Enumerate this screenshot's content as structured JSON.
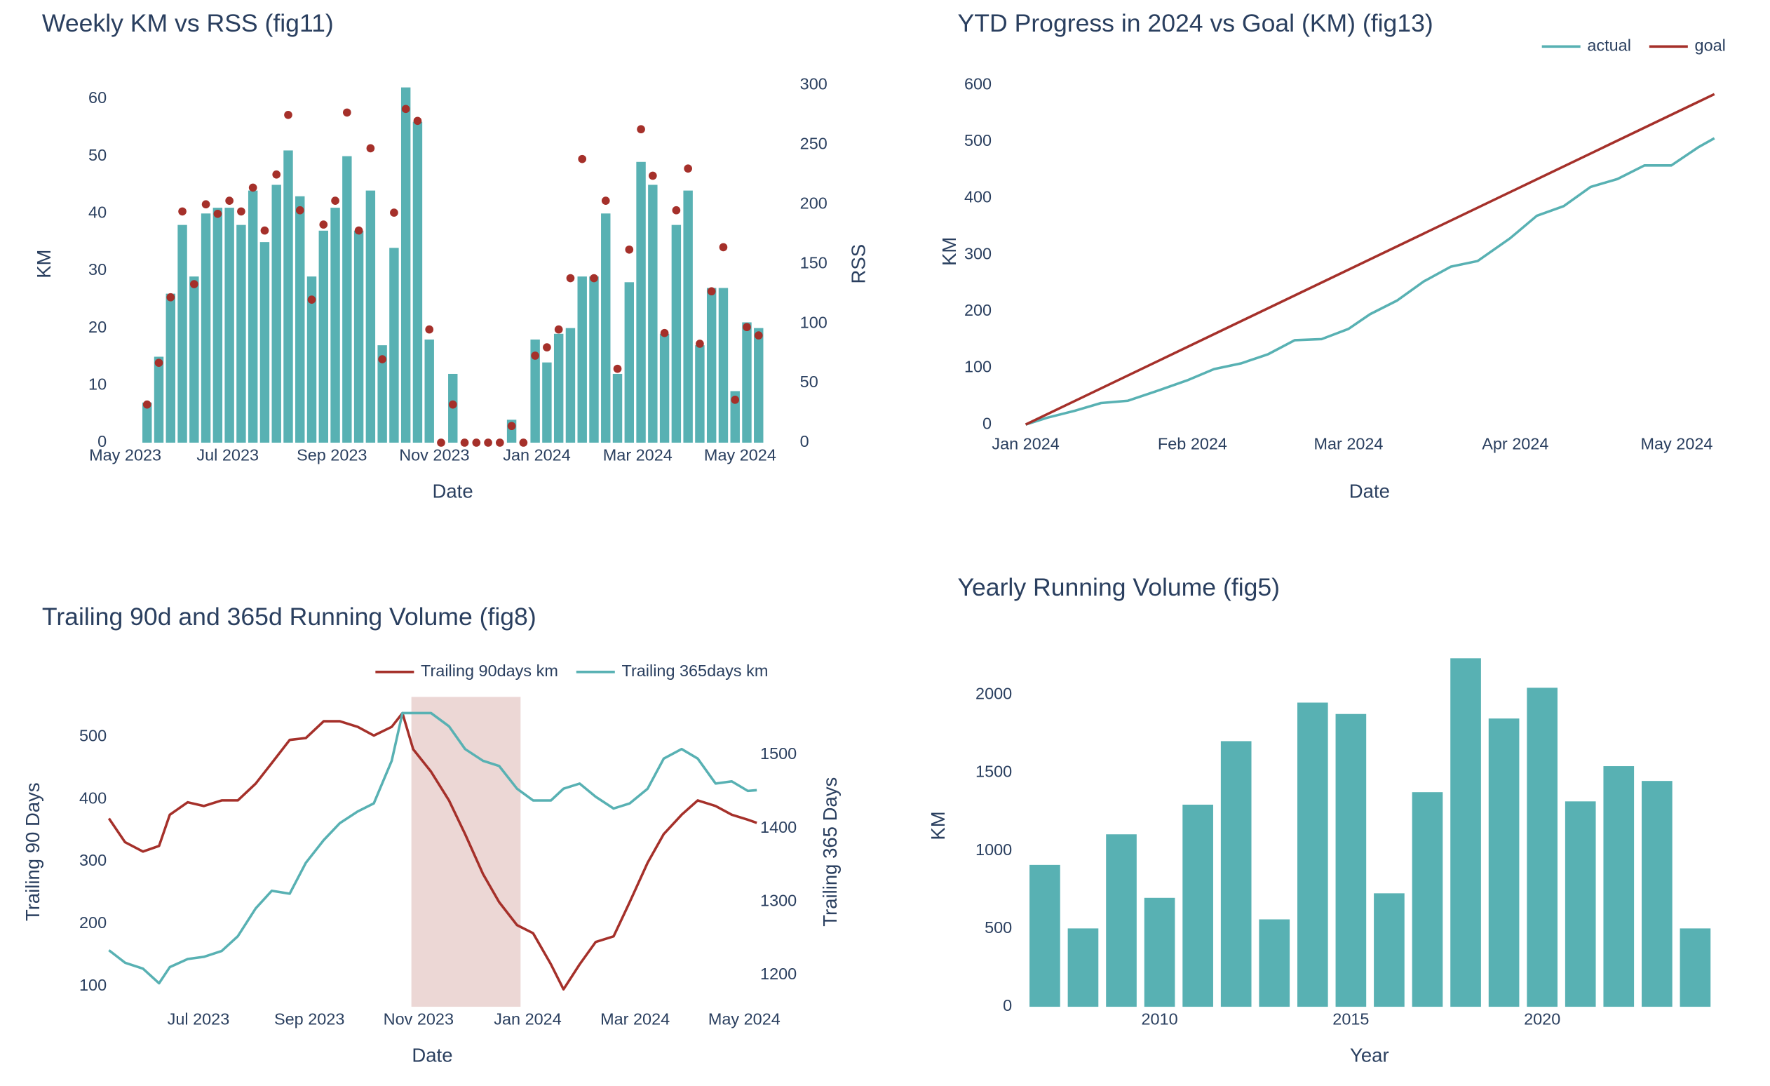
{
  "chart_data": [
    {
      "type": "bar",
      "title": "Weekly KM vs RSS (fig11)",
      "x_label": "Date",
      "y_label": "KM",
      "y2_label": "RSS",
      "x": [
        "2023-05-14",
        "2023-05-21",
        "2023-05-28",
        "2023-06-04",
        "2023-06-11",
        "2023-06-18",
        "2023-06-25",
        "2023-07-02",
        "2023-07-09",
        "2023-07-16",
        "2023-07-23",
        "2023-07-30",
        "2023-08-06",
        "2023-08-13",
        "2023-08-20",
        "2023-08-27",
        "2023-09-03",
        "2023-09-10",
        "2023-09-17",
        "2023-09-24",
        "2023-10-01",
        "2023-10-08",
        "2023-10-15",
        "2023-10-22",
        "2023-10-29",
        "2023-11-05",
        "2023-11-12",
        "2023-11-19",
        "2023-11-26",
        "2023-12-03",
        "2023-12-10",
        "2023-12-17",
        "2023-12-24",
        "2023-12-31",
        "2024-01-07",
        "2024-01-14",
        "2024-01-21",
        "2024-01-28",
        "2024-02-04",
        "2024-02-11",
        "2024-02-18",
        "2024-02-25",
        "2024-03-03",
        "2024-03-10",
        "2024-03-17",
        "2024-03-24",
        "2024-03-31",
        "2024-04-07",
        "2024-04-14",
        "2024-04-21",
        "2024-04-28",
        "2024-05-05",
        "2024-05-12"
      ],
      "xlim": [
        "2023-04-24",
        "2024-05-17"
      ],
      "xticks": [
        {
          "value": "2023-05-01",
          "label": "May 2023"
        },
        {
          "value": "2023-07-01",
          "label": "Jul 2023"
        },
        {
          "value": "2023-09-01",
          "label": "Sep 2023"
        },
        {
          "value": "2023-11-01",
          "label": "Nov 2023"
        },
        {
          "value": "2024-01-01",
          "label": "Jan 2024"
        },
        {
          "value": "2024-03-01",
          "label": "Mar 2024"
        },
        {
          "value": "2024-05-01",
          "label": "May 2024"
        }
      ],
      "ylim": [
        0,
        62.4
      ],
      "yticks": [
        0,
        10,
        20,
        30,
        40,
        50,
        60
      ],
      "y2lim": [
        0,
        300
      ],
      "y2ticks": [
        0,
        50,
        100,
        150,
        200,
        250,
        300
      ],
      "series": [
        {
          "type": "bar",
          "color": "#58b1b3",
          "values": [
            7,
            15,
            26,
            38,
            29,
            40,
            41,
            41,
            38,
            44,
            35,
            45,
            51,
            43,
            29,
            37,
            41,
            50,
            37,
            44,
            17,
            34,
            62,
            56,
            18,
            0,
            12,
            0,
            0,
            0,
            0,
            4,
            0,
            18,
            14,
            19,
            20,
            29,
            29,
            40,
            12,
            28,
            49,
            45,
            19,
            38,
            44,
            17,
            27,
            27,
            9,
            21,
            20
          ]
        },
        {
          "type": "scatter",
          "axis": "y2",
          "color": "#a5302a",
          "values": [
            32,
            67,
            122,
            194,
            133,
            200,
            192,
            203,
            194,
            214,
            178,
            225,
            275,
            195,
            120,
            183,
            203,
            277,
            178,
            247,
            70,
            193,
            280,
            270,
            95,
            0,
            32,
            0,
            0,
            0,
            0,
            14,
            0,
            73,
            80,
            95,
            138,
            238,
            138,
            203,
            62,
            162,
            263,
            224,
            92,
            195,
            230,
            83,
            127,
            164,
            36,
            97,
            90
          ]
        }
      ]
    },
    {
      "type": "line",
      "title": "YTD Progress in 2024 vs Goal (KM) (fig13)",
      "x_label": "Date",
      "y_label": "KM",
      "legend": "top-right",
      "xlim": [
        "2024-01-01",
        "2024-05-08"
      ],
      "xticks": [
        {
          "value": "2024-01-01",
          "label": "Jan 2024"
        },
        {
          "value": "2024-02-01",
          "label": "Feb 2024"
        },
        {
          "value": "2024-03-01",
          "label": "Mar 2024"
        },
        {
          "value": "2024-04-01",
          "label": "Apr 2024"
        },
        {
          "value": "2024-05-01",
          "label": "May 2024"
        }
      ],
      "ylim": [
        -12,
        624
      ],
      "yticks": [
        0,
        100,
        200,
        300,
        400,
        500,
        600
      ],
      "series": [
        {
          "name": "actual",
          "color": "#58b1b3",
          "x": [
            "2024-01-01",
            "2024-01-05",
            "2024-01-10",
            "2024-01-15",
            "2024-01-20",
            "2024-01-25",
            "2024-01-31",
            "2024-02-05",
            "2024-02-10",
            "2024-02-15",
            "2024-02-20",
            "2024-02-25",
            "2024-03-01",
            "2024-03-05",
            "2024-03-10",
            "2024-03-15",
            "2024-03-20",
            "2024-03-25",
            "2024-03-31",
            "2024-04-05",
            "2024-04-10",
            "2024-04-15",
            "2024-04-20",
            "2024-04-25",
            "2024-04-30",
            "2024-05-05",
            "2024-05-08"
          ],
          "values": [
            0,
            12,
            24,
            38,
            42,
            58,
            78,
            98,
            108,
            124,
            149,
            151,
            169,
            195,
            219,
            253,
            279,
            289,
            329,
            369,
            386,
            420,
            434,
            458,
            458,
            490,
            506
          ]
        },
        {
          "name": "goal",
          "color": "#a5302a",
          "x": [
            "2024-01-01",
            "2024-05-08"
          ],
          "values": [
            0,
            584
          ]
        }
      ]
    },
    {
      "type": "line",
      "title": "Trailing 90d and 365d Running Volume (fig8)",
      "x_label": "Date",
      "y_label": "Trailing 90 Days",
      "y2_label": "Trailing 365 Days",
      "legend": "top-right",
      "x": [
        "2023-05-12",
        "2023-05-21",
        "2023-05-31",
        "2023-06-09",
        "2023-06-15",
        "2023-06-25",
        "2023-07-04",
        "2023-07-14",
        "2023-07-23",
        "2023-08-02",
        "2023-08-11",
        "2023-08-21",
        "2023-08-30",
        "2023-09-09",
        "2023-09-18",
        "2023-09-28",
        "2023-10-07",
        "2023-10-17",
        "2023-10-23",
        "2023-10-29",
        "2023-11-08",
        "2023-11-18",
        "2023-11-27",
        "2023-12-07",
        "2023-12-16",
        "2023-12-26",
        "2024-01-04",
        "2024-01-14",
        "2024-01-21",
        "2024-01-30",
        "2024-02-08",
        "2024-02-18",
        "2024-02-27",
        "2024-03-08",
        "2024-03-17",
        "2024-03-27",
        "2024-04-05",
        "2024-04-15",
        "2024-04-24",
        "2024-05-03",
        "2024-05-08"
      ],
      "xlim": [
        "2023-05-12",
        "2024-05-08"
      ],
      "xticks": [
        {
          "value": "2023-07-01",
          "label": "Jul 2023"
        },
        {
          "value": "2023-09-01",
          "label": "Sep 2023"
        },
        {
          "value": "2023-11-01",
          "label": "Nov 2023"
        },
        {
          "value": "2024-01-01",
          "label": "Jan 2024"
        },
        {
          "value": "2024-03-01",
          "label": "Mar 2024"
        },
        {
          "value": "2024-05-01",
          "label": "May 2024"
        }
      ],
      "ylim": [
        67,
        564
      ],
      "yticks": [
        100,
        200,
        300,
        400,
        500
      ],
      "y2lim": [
        1157,
        1579
      ],
      "y2ticks": [
        1200,
        1300,
        1400,
        1500
      ],
      "shade": {
        "x0": "2023-10-28",
        "x1": "2023-12-28",
        "color": "#ecd7d5"
      },
      "series": [
        {
          "name": "Trailing 90days km",
          "color": "#a5302a",
          "values": [
            369,
            331,
            316,
            325,
            375,
            395,
            389,
            398,
            398,
            425,
            458,
            495,
            498,
            525,
            525,
            516,
            502,
            516,
            538,
            480,
            444,
            398,
            344,
            280,
            235,
            198,
            185,
            135,
            95,
            135,
            171,
            180,
            235,
            298,
            344,
            375,
            398,
            389,
            375,
            367,
            362
          ]
        },
        {
          "name": "Trailing 365days km",
          "color": "#58b1b3",
          "axis": "y2",
          "values": [
            1234,
            1217,
            1209,
            1189,
            1211,
            1222,
            1225,
            1233,
            1253,
            1291,
            1315,
            1311,
            1353,
            1384,
            1407,
            1423,
            1434,
            1492,
            1557,
            1557,
            1557,
            1539,
            1508,
            1492,
            1485,
            1454,
            1438,
            1438,
            1454,
            1461,
            1443,
            1427,
            1434,
            1454,
            1495,
            1508,
            1495,
            1461,
            1464,
            1451,
            1452
          ]
        }
      ]
    },
    {
      "type": "bar",
      "title": "Yearly Running Volume (fig5)",
      "x_label": "Year",
      "y_label": "KM",
      "x": [
        2007,
        2008,
        2009,
        2010,
        2011,
        2012,
        2013,
        2014,
        2015,
        2016,
        2017,
        2018,
        2019,
        2020,
        2021,
        2022,
        2023,
        2024
      ],
      "xlim": [
        2006.5,
        2024.5
      ],
      "xticks": [
        2010,
        2015,
        2020
      ],
      "ylim": [
        0,
        2320
      ],
      "yticks": [
        0,
        500,
        1000,
        1500,
        2000
      ],
      "series": [
        {
          "color": "#58b1b3",
          "values": [
            909,
            502,
            1105,
            698,
            1295,
            1702,
            560,
            1949,
            1876,
            727,
            1375,
            2233,
            1847,
            2044,
            1316,
            1542,
            1447,
            502
          ]
        }
      ]
    }
  ]
}
